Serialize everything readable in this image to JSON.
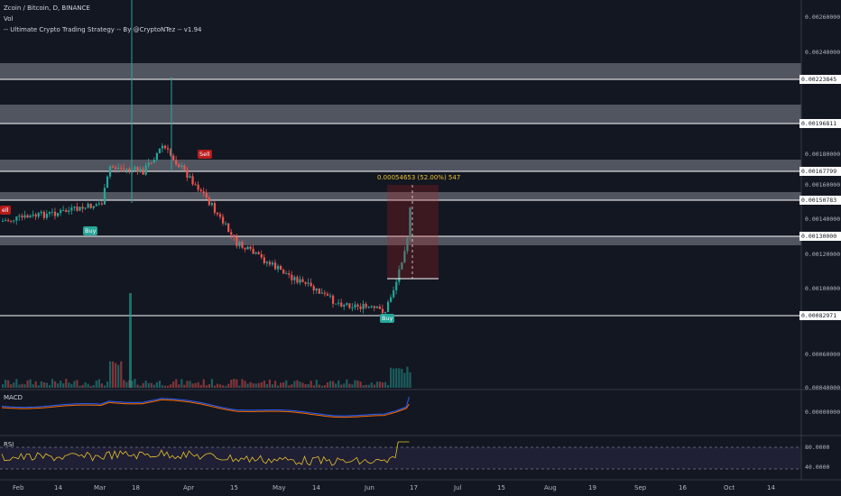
{
  "header": {
    "title": "Zcoin / Bitcoin, D, BINANCE",
    "volume_label": "Vol",
    "strategy": "-- Ultimate Crypto Trading Strategy -- By @CryptoNTez -- v1.94"
  },
  "panels": {
    "macd": "MACD",
    "rsi": "RSI"
  },
  "price_axis": [
    "0.00260000",
    "0.00240000",
    "0.00223845",
    "0.00196811",
    "0.00180000",
    "0.00167799",
    "0.00160000",
    "0.00150783",
    "0.00140000",
    "0.00130000",
    "0.00120000",
    "0.00100000",
    "0.00082971",
    "0.00060000",
    "0.00040000"
  ],
  "macd_axis": [
    "0.00000000"
  ],
  "rsi_axis": [
    "80.0000",
    "40.0000"
  ],
  "time_axis": [
    "Feb",
    "14",
    "Mar",
    "18",
    "Apr",
    "15",
    "May",
    "14",
    "Jun",
    "17",
    "Jul",
    "15",
    "Aug",
    "19",
    "Sep",
    "16",
    "Oct",
    "14"
  ],
  "signals": {
    "sell_left": "ell",
    "buy_1": "Buy",
    "sell_1": "Sell",
    "buy_2": "Buy"
  },
  "measure": "0.00054653 (52.00%) 547",
  "colors": {
    "background": "#131722",
    "up": "#26a69a",
    "down": "#ef5350",
    "zone": "#5d606b",
    "macd": "#2962ff",
    "signal": "#ff6d00",
    "rsi": "#e8c22b"
  }
}
